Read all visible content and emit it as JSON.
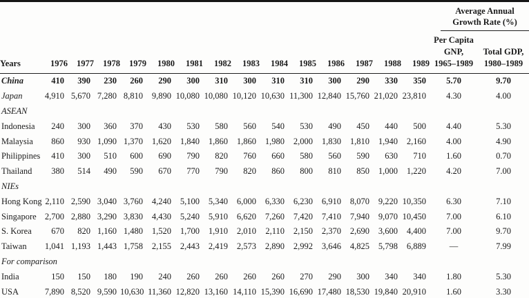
{
  "header": {
    "group_title": [
      "Average Annual",
      "Growth Rate (%)"
    ],
    "years_label": "Years",
    "years": [
      "1976",
      "1977",
      "1978",
      "1979",
      "1980",
      "1981",
      "1982",
      "1983",
      "1984",
      "1985",
      "1986",
      "1987",
      "1988",
      "1989"
    ],
    "per_capita_lines": [
      "Per Capita",
      "GNP,",
      "1965–1989"
    ],
    "total_gdp_lines": [
      "Total GDP,",
      "1980–1989"
    ]
  },
  "rows": [
    {
      "label": "China",
      "label_style": "bold-italic",
      "bold_values": true,
      "values": [
        "410",
        "390",
        "230",
        "260",
        "290",
        "300",
        "310",
        "300",
        "310",
        "310",
        "300",
        "290",
        "330",
        "350"
      ],
      "gnp_growth": "5.70",
      "gdp_growth": "9.70"
    },
    {
      "label": "Japan",
      "label_style": "italic",
      "values": [
        "4,910",
        "5,670",
        "7,280",
        "8,810",
        "9,890",
        "10,080",
        "10,080",
        "10,120",
        "10,630",
        "11,300",
        "12,840",
        "15,760",
        "21,020",
        "23,810"
      ],
      "gnp_growth": "4.30",
      "gdp_growth": "4.00"
    },
    {
      "label": "ASEAN",
      "section": true
    },
    {
      "label": "Indonesia",
      "values": [
        "240",
        "300",
        "360",
        "370",
        "430",
        "530",
        "580",
        "560",
        "540",
        "530",
        "490",
        "450",
        "440",
        "500"
      ],
      "gnp_growth": "4.40",
      "gdp_growth": "5.30"
    },
    {
      "label": "Malaysia",
      "values": [
        "860",
        "930",
        "1,090",
        "1,370",
        "1,620",
        "1,840",
        "1,860",
        "1,860",
        "1,980",
        "2,000",
        "1,830",
        "1,810",
        "1,940",
        "2,160"
      ],
      "gnp_growth": "4.00",
      "gdp_growth": "4.90"
    },
    {
      "label": "Philippines",
      "values": [
        "410",
        "300",
        "510",
        "600",
        "690",
        "790",
        "820",
        "760",
        "660",
        "580",
        "560",
        "590",
        "630",
        "710"
      ],
      "gnp_growth": "1.60",
      "gdp_growth": "0.70"
    },
    {
      "label": "Thailand",
      "values": [
        "380",
        "514",
        "490",
        "590",
        "670",
        "770",
        "790",
        "820",
        "860",
        "800",
        "810",
        "850",
        "1,000",
        "1,220"
      ],
      "gnp_growth": "4.20",
      "gdp_growth": "7.00"
    },
    {
      "label": "NIEs",
      "section": true
    },
    {
      "label": "Hong Kong",
      "values": [
        "2,110",
        "2,590",
        "3,040",
        "3,760",
        "4,240",
        "5,100",
        "5,340",
        "6,000",
        "6,330",
        "6,230",
        "6,910",
        "8,070",
        "9,220",
        "10,350"
      ],
      "gnp_growth": "6.30",
      "gdp_growth": "7.10"
    },
    {
      "label": "Singapore",
      "values": [
        "2,700",
        "2,880",
        "3,290",
        "3,830",
        "4,430",
        "5,240",
        "5,910",
        "6,620",
        "7,260",
        "7,420",
        "7,410",
        "7,940",
        "9,070",
        "10,450"
      ],
      "gnp_growth": "7.00",
      "gdp_growth": "6.10"
    },
    {
      "label": "S. Korea",
      "values": [
        "670",
        "820",
        "1,160",
        "1,480",
        "1,520",
        "1,700",
        "1,910",
        "2,010",
        "2,110",
        "2,150",
        "2,370",
        "2,690",
        "3,600",
        "4,400"
      ],
      "gnp_growth": "7.00",
      "gdp_growth": "9.70"
    },
    {
      "label": "Taiwan",
      "values": [
        "1,041",
        "1,193",
        "1,443",
        "1,758",
        "2,155",
        "2,443",
        "2,419",
        "2,573",
        "2,890",
        "2,992",
        "3,646",
        "4,825",
        "5,798",
        "6,889"
      ],
      "gnp_growth": "—",
      "gdp_growth": "7.99"
    },
    {
      "label": "For comparison",
      "section": true
    },
    {
      "label": "India",
      "values": [
        "150",
        "150",
        "180",
        "190",
        "240",
        "260",
        "260",
        "260",
        "260",
        "270",
        "290",
        "300",
        "340",
        "340"
      ],
      "gnp_growth": "1.80",
      "gdp_growth": "5.30"
    },
    {
      "label": "USA",
      "values": [
        "7,890",
        "8,520",
        "9,590",
        "10,630",
        "11,360",
        "12,820",
        "13,160",
        "14,110",
        "15,390",
        "16,690",
        "17,480",
        "18,530",
        "19,840",
        "20,910"
      ],
      "gnp_growth": "1.60",
      "gdp_growth": "3.30"
    }
  ]
}
